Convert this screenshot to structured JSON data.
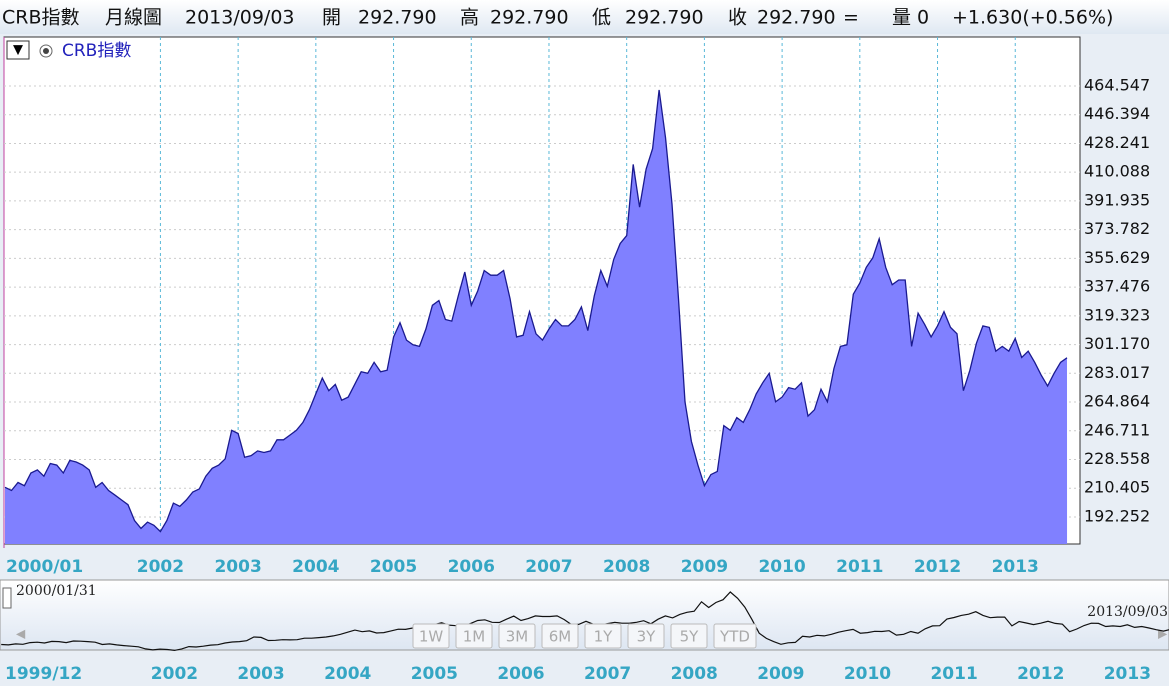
{
  "header": {
    "fields": [
      "CRB指數",
      "月線圖",
      "2013/09/03",
      "開",
      "292.790",
      "高",
      "292.790",
      "低",
      "292.790",
      "收",
      "292.790",
      "=",
      "量 0",
      "+1.630(+0.56%)"
    ]
  },
  "legend": {
    "label": "CRB指數"
  },
  "chart_data": {
    "type": "area",
    "series": [
      {
        "name": "CRB指數",
        "color": "#8080ff",
        "values": [
          211,
          209,
          214,
          212,
          220,
          222,
          218,
          226,
          225,
          220,
          228,
          227,
          225,
          222,
          211,
          214,
          209,
          206,
          203,
          200,
          190,
          185,
          189,
          187,
          183,
          190,
          201,
          199,
          203,
          208,
          210,
          218,
          223,
          225,
          229,
          247,
          245,
          230,
          231,
          234,
          233,
          234,
          241,
          241,
          244,
          247,
          252,
          260,
          270,
          280,
          272,
          276,
          266,
          268,
          276,
          284,
          283,
          290,
          284,
          285,
          306,
          315,
          304,
          301,
          300,
          311,
          326,
          329,
          317,
          316,
          332,
          347,
          326,
          335,
          348,
          345,
          345,
          348,
          330,
          306,
          307,
          322,
          308,
          304,
          311,
          317,
          313,
          313,
          317,
          325,
          310,
          332,
          348,
          338,
          355,
          365,
          370,
          415,
          388,
          412,
          425,
          462,
          432,
          390,
          330,
          265,
          240,
          225,
          212,
          219,
          221,
          250,
          247,
          255,
          252,
          260,
          270,
          277,
          283,
          265,
          268,
          274,
          273,
          277,
          256,
          260,
          273,
          265,
          286,
          300,
          301,
          333,
          340,
          350,
          356,
          368,
          350,
          339,
          342,
          342,
          300,
          321,
          314,
          306,
          313,
          322,
          312,
          308,
          272,
          285,
          302,
          313,
          312,
          297,
          300,
          297,
          305,
          293,
          297,
          290,
          282,
          275,
          283,
          290,
          292.79
        ]
      }
    ],
    "x_start": "2000/01",
    "xlim": [
      "2000/01",
      "2013/11"
    ],
    "xticks": [
      {
        "value": "2000/01",
        "label": "2000/01"
      },
      {
        "value": "2002/01",
        "label": "2002"
      },
      {
        "value": "2003/01",
        "label": "2003"
      },
      {
        "value": "2004/01",
        "label": "2004"
      },
      {
        "value": "2005/01",
        "label": "2005"
      },
      {
        "value": "2006/01",
        "label": "2006"
      },
      {
        "value": "2007/01",
        "label": "2007"
      },
      {
        "value": "2008/01",
        "label": "2008"
      },
      {
        "value": "2009/01",
        "label": "2009"
      },
      {
        "value": "2010/01",
        "label": "2010"
      },
      {
        "value": "2011/01",
        "label": "2011"
      },
      {
        "value": "2012/01",
        "label": "2012"
      },
      {
        "value": "2013/01",
        "label": "2013"
      }
    ],
    "ylim": [
      175.17,
      495.5
    ],
    "yticks": [
      192.252,
      210.405,
      228.558,
      246.711,
      264.864,
      283.017,
      {
        "value": 301.17,
        "label": "301.170"
      },
      319.323,
      337.476,
      355.629,
      373.782,
      391.935,
      410.088,
      428.241,
      446.394,
      464.547
    ],
    "grid": true
  },
  "navigator": {
    "start_date": "2000/01/31",
    "end_date": "2013/09/03",
    "xlim": [
      "1999/12",
      "2014/01"
    ],
    "xticks": [
      {
        "value": "1999/12",
        "label": "1999/12"
      },
      {
        "value": "2002/01",
        "label": "2002"
      },
      {
        "value": "2003/01",
        "label": "2003"
      },
      {
        "value": "2004/01",
        "label": "2004"
      },
      {
        "value": "2005/01",
        "label": "2005"
      },
      {
        "value": "2006/01",
        "label": "2006"
      },
      {
        "value": "2007/01",
        "label": "2007"
      },
      {
        "value": "2008/01",
        "label": "2008"
      },
      {
        "value": "2009/01",
        "label": "2009"
      },
      {
        "value": "2010/01",
        "label": "2010"
      },
      {
        "value": "2011/01",
        "label": "2011"
      },
      {
        "value": "2012/01",
        "label": "2012"
      },
      {
        "value": "2013/01",
        "label": "2013"
      }
    ],
    "buttons": [
      "1W",
      "1M",
      "3M",
      "6M",
      "1Y",
      "3Y",
      "5Y",
      "YTD"
    ]
  }
}
